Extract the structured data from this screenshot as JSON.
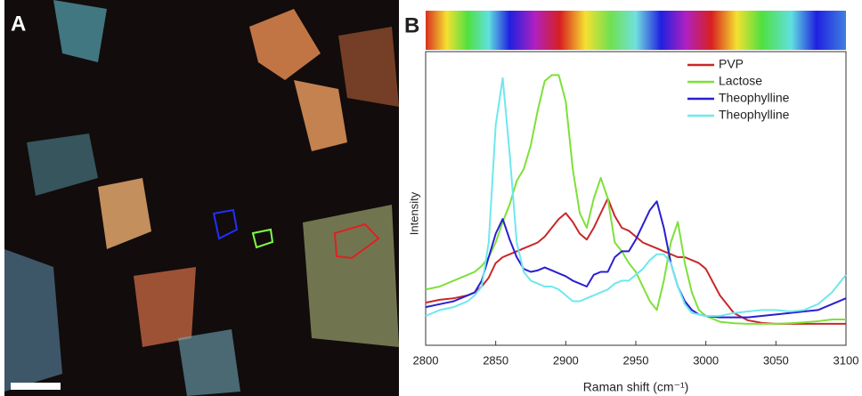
{
  "panels": {
    "a_label": "A",
    "b_label": "B"
  },
  "chart_data": {
    "type": "line",
    "x_label": "Raman shift (cm⁻¹)",
    "y_label": "Intensity",
    "x": [
      2800,
      2810,
      2820,
      2830,
      2835,
      2840,
      2845,
      2850,
      2855,
      2860,
      2865,
      2870,
      2875,
      2880,
      2885,
      2890,
      2895,
      2900,
      2905,
      2910,
      2915,
      2920,
      2925,
      2930,
      2935,
      2940,
      2945,
      2950,
      2955,
      2960,
      2965,
      2970,
      2975,
      2980,
      2985,
      2990,
      2995,
      3000,
      3010,
      3020,
      3030,
      3040,
      3050,
      3060,
      3070,
      3080,
      3090,
      3100
    ],
    "series": [
      {
        "name": "PVP",
        "color": "#c8282a",
        "values": [
          14.5,
          15.5,
          16,
          17,
          18,
          20,
          23,
          28,
          30,
          31,
          32,
          33,
          34,
          35,
          37,
          40,
          43,
          45,
          42,
          38,
          36,
          40,
          45,
          50,
          44,
          40,
          39,
          37,
          35,
          34,
          33,
          32,
          31,
          30,
          30,
          29,
          28,
          26,
          17,
          11,
          8.5,
          7.6,
          7.3,
          7.3,
          7.3,
          7.3,
          7.3,
          7.3
        ]
      },
      {
        "name": "Lactose",
        "color": "#7ee03a",
        "values": [
          19,
          20,
          22,
          24,
          25,
          27,
          30,
          35,
          42,
          48,
          56,
          60,
          68,
          80,
          90,
          92,
          92,
          83,
          60,
          45,
          40,
          50,
          57,
          50,
          35,
          32,
          28,
          25,
          20,
          15,
          12,
          22,
          35,
          42,
          28,
          18,
          12,
          10,
          8,
          7.5,
          7.3,
          7.3,
          7.3,
          7.5,
          7.8,
          8.2,
          8.8,
          8.8
        ]
      },
      {
        "name": "Theophylline",
        "color": "#2a1fd0",
        "values": [
          13,
          14,
          15,
          17,
          18,
          22,
          30,
          38,
          43,
          36,
          30,
          26,
          25,
          25.5,
          26.5,
          25.5,
          24.5,
          23.5,
          22,
          21,
          20,
          24,
          25,
          25,
          30,
          32,
          32,
          36,
          41,
          46,
          49,
          40,
          28,
          20,
          15,
          12,
          10.5,
          10,
          9.5,
          9.5,
          9.5,
          10,
          10.5,
          11,
          11.5,
          12,
          14,
          16
        ]
      },
      {
        "name": "Theophylline",
        "color": "#6ee8ee",
        "values": [
          10,
          12,
          13,
          15,
          17,
          20,
          35,
          75,
          91,
          65,
          35,
          25,
          22,
          21,
          20,
          20,
          19,
          17,
          15,
          15,
          16,
          17,
          18,
          19,
          21,
          22,
          22,
          24,
          26,
          29,
          31,
          31,
          28,
          20,
          14,
          11,
          10.5,
          10,
          10,
          11,
          11.5,
          12,
          12,
          11.5,
          12,
          14,
          18,
          24
        ]
      }
    ],
    "xlim": [
      2800,
      3100
    ],
    "ylim": [
      0,
      100
    ],
    "xticks": [
      2800,
      2850,
      2900,
      2950,
      3000,
      3050,
      3100
    ],
    "legend": "upper right"
  }
}
